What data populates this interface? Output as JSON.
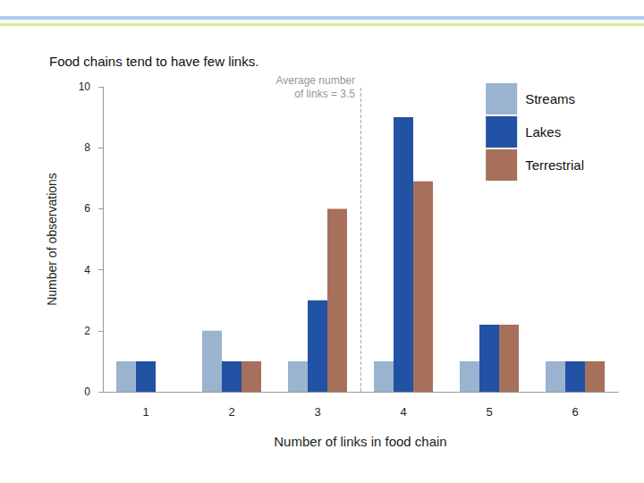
{
  "chart_data": {
    "type": "bar",
    "title": "Food chains tend to have few links.",
    "x_label": "Number of links in food chain",
    "y_label": "Number of observations",
    "categories": [
      "1",
      "2",
      "3",
      "4",
      "5",
      "6"
    ],
    "series": [
      {
        "name": "Streams",
        "color": "#9ab3cf",
        "values": [
          1,
          2,
          1,
          1,
          1,
          1
        ]
      },
      {
        "name": "Lakes",
        "color": "#2152a3",
        "values": [
          1,
          1,
          3,
          9,
          2.2,
          1
        ]
      },
      {
        "name": "Terrestrial",
        "color": "#a6705a",
        "values": [
          0,
          1,
          6,
          6.9,
          2.2,
          1
        ]
      }
    ],
    "ylim": [
      0,
      10
    ],
    "yticks": [
      0,
      2,
      4,
      6,
      8,
      10
    ],
    "grid": false,
    "legend": "top-right",
    "annotation": {
      "text": "Average number\nof links = 3.5",
      "x": 3.5
    }
  }
}
